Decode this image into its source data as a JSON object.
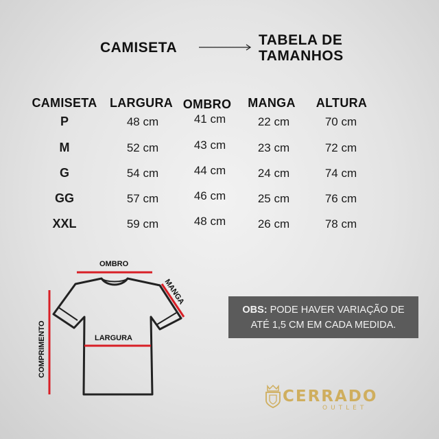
{
  "header": {
    "left_title": "CAMISETA",
    "right_title_line1": "TABELA DE",
    "right_title_line2": "TAMANHOS"
  },
  "table": {
    "columns": [
      "CAMISETA",
      "LARGURA",
      "OMBRO",
      "MANGA",
      "ALTURA"
    ],
    "rows": [
      {
        "size": "P",
        "largura": "48 cm",
        "ombro": "41 cm",
        "manga": "22 cm",
        "altura": "70 cm"
      },
      {
        "size": "M",
        "largura": "52 cm",
        "ombro": "43 cm",
        "manga": "23 cm",
        "altura": "72 cm"
      },
      {
        "size": "G",
        "largura": "54 cm",
        "ombro": "44 cm",
        "manga": "24 cm",
        "altura": "74 cm"
      },
      {
        "size": "GG",
        "largura": "57 cm",
        "ombro": "46 cm",
        "manga": "25 cm",
        "altura": "76 cm"
      },
      {
        "size": "XXL",
        "largura": "59 cm",
        "ombro": "48 cm",
        "manga": "26 cm",
        "altura": "78 cm"
      }
    ]
  },
  "diagram": {
    "ombro_label": "OMBRO",
    "manga_label": "MANGA",
    "largura_label": "LARGURA",
    "comprimento_label": "COMPRIMENTO",
    "measure_color": "#d81f26"
  },
  "note": {
    "prefix": "OBS:",
    "text": " PODE HAVER VARIAÇÃO DE ATÉ 1,5 CM EM CADA MEDIDA."
  },
  "brand": {
    "name": "CERRADO",
    "sub": "OUTLET",
    "logo_icon": "crown-shield-icon",
    "color": "#cfae5e"
  }
}
